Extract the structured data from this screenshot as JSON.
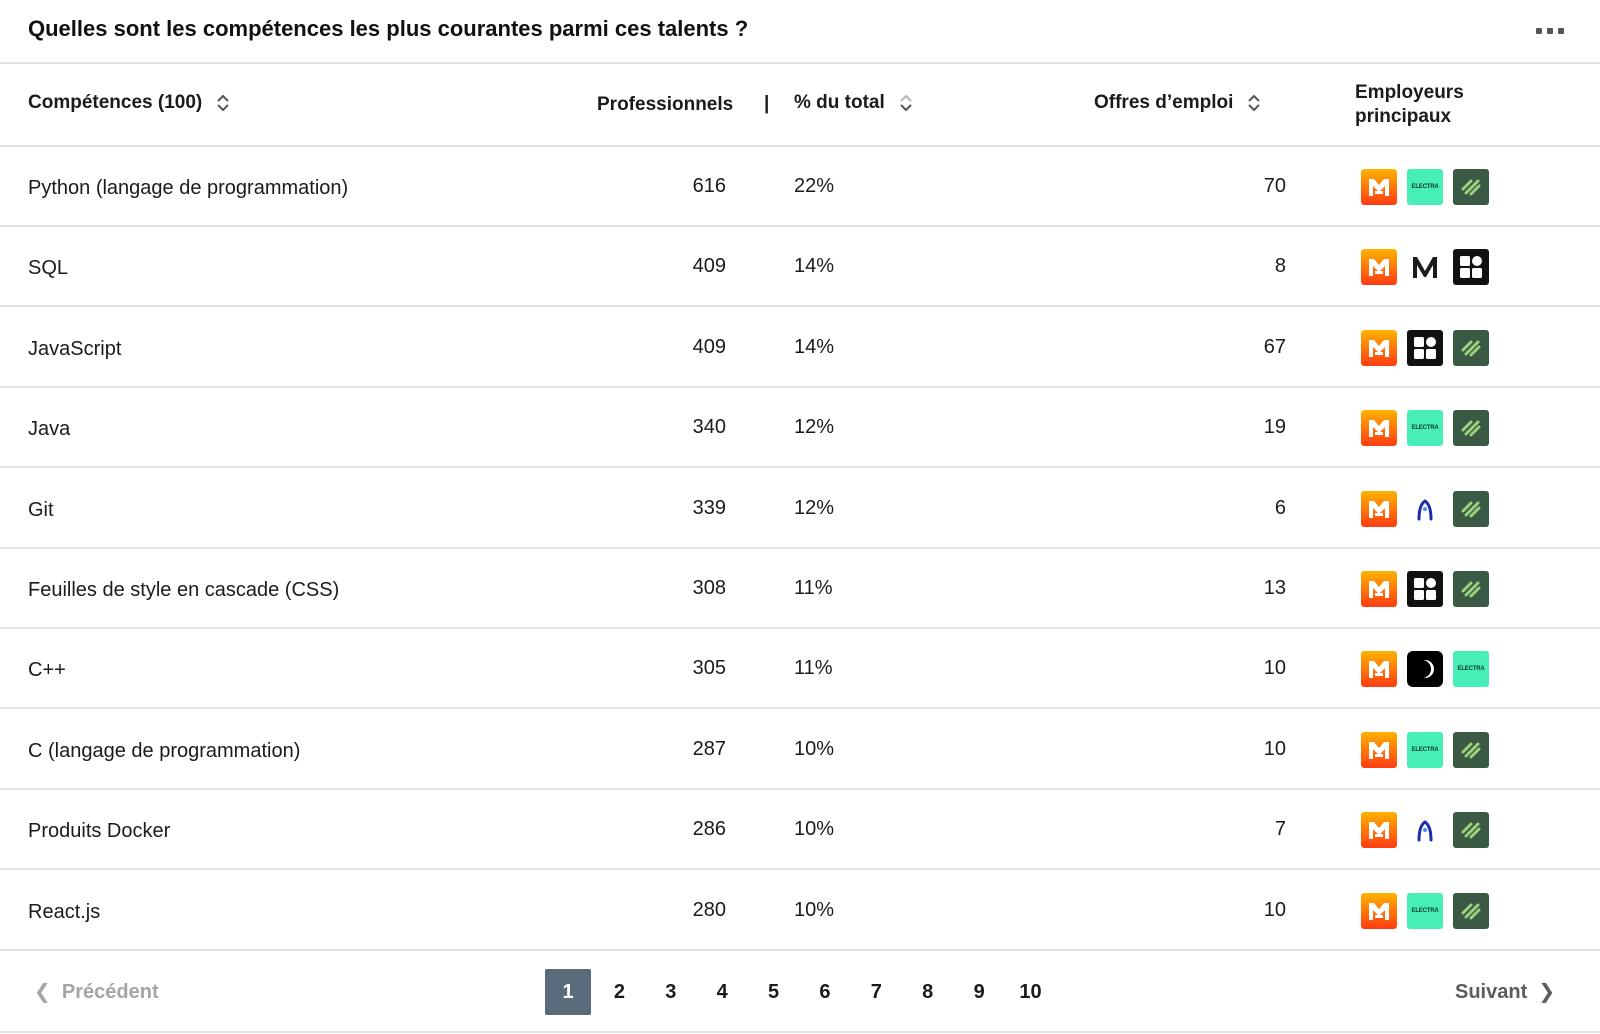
{
  "title": "Quelles sont les compétences les plus courantes parmi ces talents ?",
  "header": {
    "skills": "Compétences (100)",
    "professionals": "Professionnels",
    "separator": "|",
    "percent": "% du total",
    "jobs": "Offres d’emploi",
    "employers": "Employeurs principaux"
  },
  "rows": [
    {
      "skill": "Python (langage de programmation)",
      "pros": "616",
      "pct": "22%",
      "jobs": "70",
      "logos": [
        "m-logo",
        "electra-logo",
        "green-stripes-logo"
      ]
    },
    {
      "skill": "SQL",
      "pros": "409",
      "pct": "14%",
      "jobs": "8",
      "logos": [
        "m-logo",
        "m-letter-logo",
        "dark-squares-logo"
      ]
    },
    {
      "skill": "JavaScript",
      "pros": "409",
      "pct": "14%",
      "jobs": "67",
      "logos": [
        "m-logo",
        "dark-squares-logo",
        "green-stripes-logo"
      ]
    },
    {
      "skill": "Java",
      "pros": "340",
      "pct": "12%",
      "jobs": "19",
      "logos": [
        "m-logo",
        "electra-logo",
        "green-stripes-logo"
      ]
    },
    {
      "skill": "Git",
      "pros": "339",
      "pct": "12%",
      "jobs": "6",
      "logos": [
        "m-logo",
        "blue-arc-logo",
        "green-stripes-logo"
      ]
    },
    {
      "skill": "Feuilles de style en cascade (CSS)",
      "pros": "308",
      "pct": "11%",
      "jobs": "13",
      "logos": [
        "m-logo",
        "dark-squares-logo",
        "green-stripes-logo"
      ]
    },
    {
      "skill": "C++",
      "pros": "305",
      "pct": "11%",
      "jobs": "10",
      "logos": [
        "m-logo",
        "moon-logo",
        "electra-logo"
      ]
    },
    {
      "skill": "C (langage de programmation)",
      "pros": "287",
      "pct": "10%",
      "jobs": "10",
      "logos": [
        "m-logo",
        "electra-logo",
        "green-stripes-logo"
      ]
    },
    {
      "skill": "Produits Docker",
      "pros": "286",
      "pct": "10%",
      "jobs": "7",
      "logos": [
        "m-logo",
        "blue-arc-logo",
        "green-stripes-logo"
      ]
    },
    {
      "skill": "React.js",
      "pros": "280",
      "pct": "10%",
      "jobs": "10",
      "logos": [
        "m-logo",
        "electra-logo",
        "green-stripes-logo"
      ]
    }
  ],
  "logo_text": {
    "electra": "ELECTRA"
  },
  "pagination": {
    "prev": "Précédent",
    "next": "Suivant",
    "pages": [
      "1",
      "2",
      "3",
      "4",
      "5",
      "6",
      "7",
      "8",
      "9",
      "10"
    ],
    "active": "1"
  },
  "colors": {
    "active_page": "#5a6c7b",
    "electra": "#48eeb7",
    "green_logo": "#3a5a45",
    "m_logo_top": "#ffb300",
    "m_logo_bottom": "#ff3b12",
    "divider": "#e3e3e3"
  }
}
